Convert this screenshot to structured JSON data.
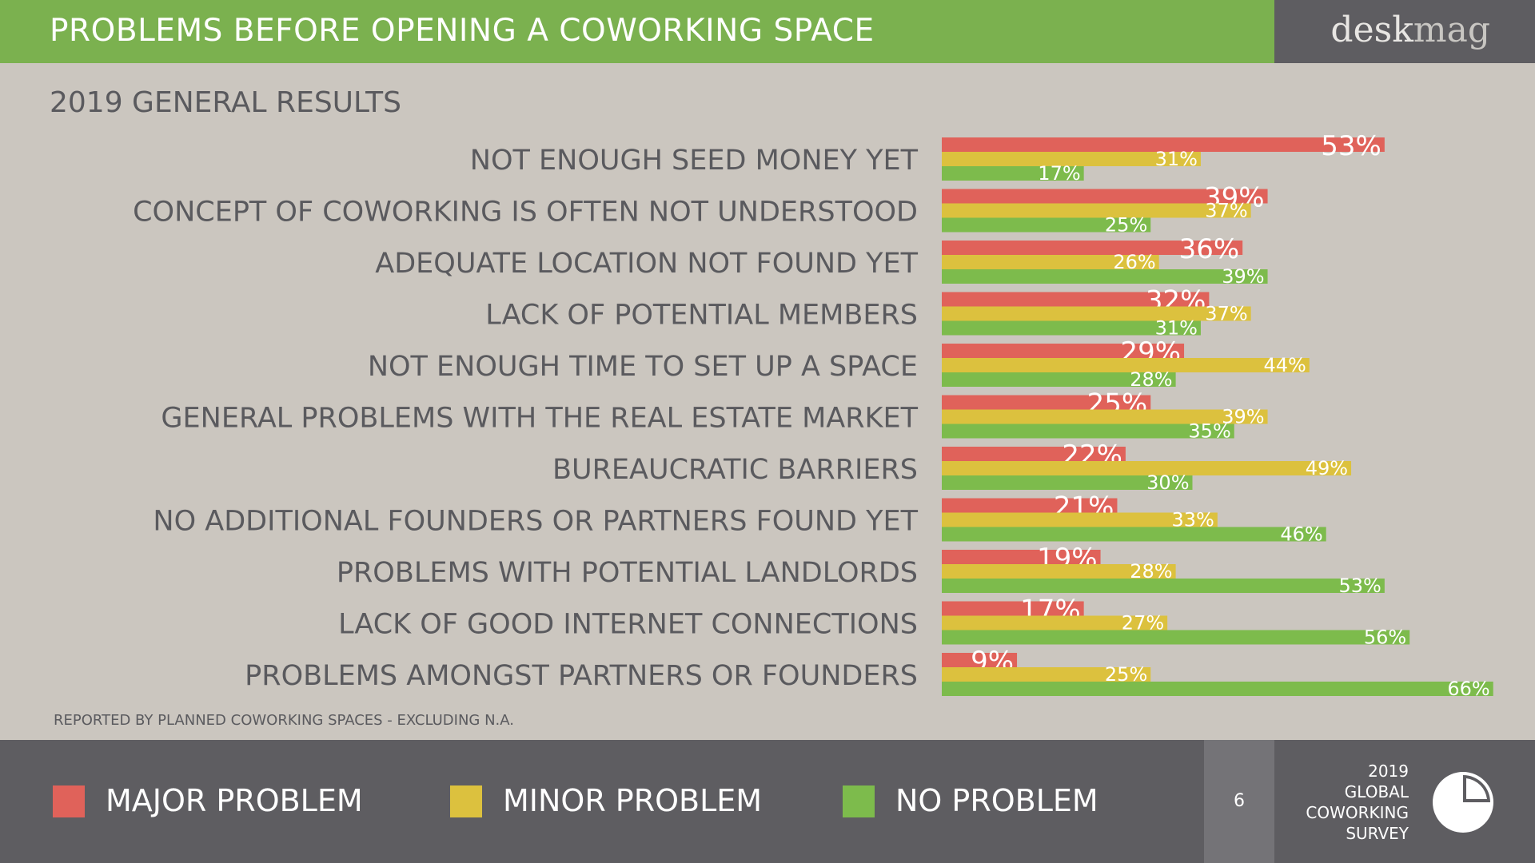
{
  "header": {
    "title": "PROBLEMS BEFORE OPENING A COWORKING SPACE",
    "brand_part1": "desk",
    "brand_part2": "mag"
  },
  "subtitle": "2019 GENERAL RESULTS",
  "note": "REPORTED BY PLANNED COWORKING SPACES - EXCLUDING N.A.",
  "legend": [
    {
      "label": "MAJOR PROBLEM",
      "color": "#e0625a"
    },
    {
      "label": "MINOR PROBLEM",
      "color": "#dcc13e"
    },
    {
      "label": "NO PROBLEM",
      "color": "#7dbb4c"
    }
  ],
  "footer": {
    "page_number": "6",
    "survey_line1": "2019",
    "survey_line2": "GLOBAL",
    "survey_line3": "COWORKING",
    "survey_line4": "SURVEY",
    "survey_icon": "pie-chart-icon"
  },
  "chart_data": {
    "type": "bar",
    "orientation": "horizontal",
    "unit": "%",
    "categories": [
      "NOT ENOUGH SEED MONEY YET",
      "CONCEPT OF COWORKING IS OFTEN NOT UNDERSTOOD",
      "ADEQUATE LOCATION NOT FOUND YET",
      "LACK OF POTENTIAL MEMBERS",
      "NOT ENOUGH TIME TO SET UP A SPACE",
      "GENERAL PROBLEMS WITH THE REAL ESTATE MARKET",
      "BUREAUCRATIC BARRIERS",
      "NO ADDITIONAL FOUNDERS OR PARTNERS FOUND YET",
      "PROBLEMS WITH POTENTIAL LANDLORDS",
      "LACK OF GOOD INTERNET CONNECTIONS",
      "PROBLEMS AMONGST PARTNERS OR FOUNDERS"
    ],
    "series": [
      {
        "name": "MAJOR PROBLEM",
        "color": "#e0625a",
        "values": [
          53,
          39,
          36,
          32,
          29,
          25,
          22,
          21,
          19,
          17,
          9
        ]
      },
      {
        "name": "MINOR PROBLEM",
        "color": "#dcc13e",
        "values": [
          31,
          37,
          26,
          37,
          44,
          39,
          49,
          33,
          28,
          27,
          25
        ]
      },
      {
        "name": "NO PROBLEM",
        "color": "#7dbb4c",
        "values": [
          17,
          25,
          39,
          31,
          28,
          35,
          30,
          46,
          53,
          56,
          66
        ]
      }
    ],
    "xlim": [
      0,
      66
    ],
    "legend_position": "bottom",
    "grid": false
  }
}
